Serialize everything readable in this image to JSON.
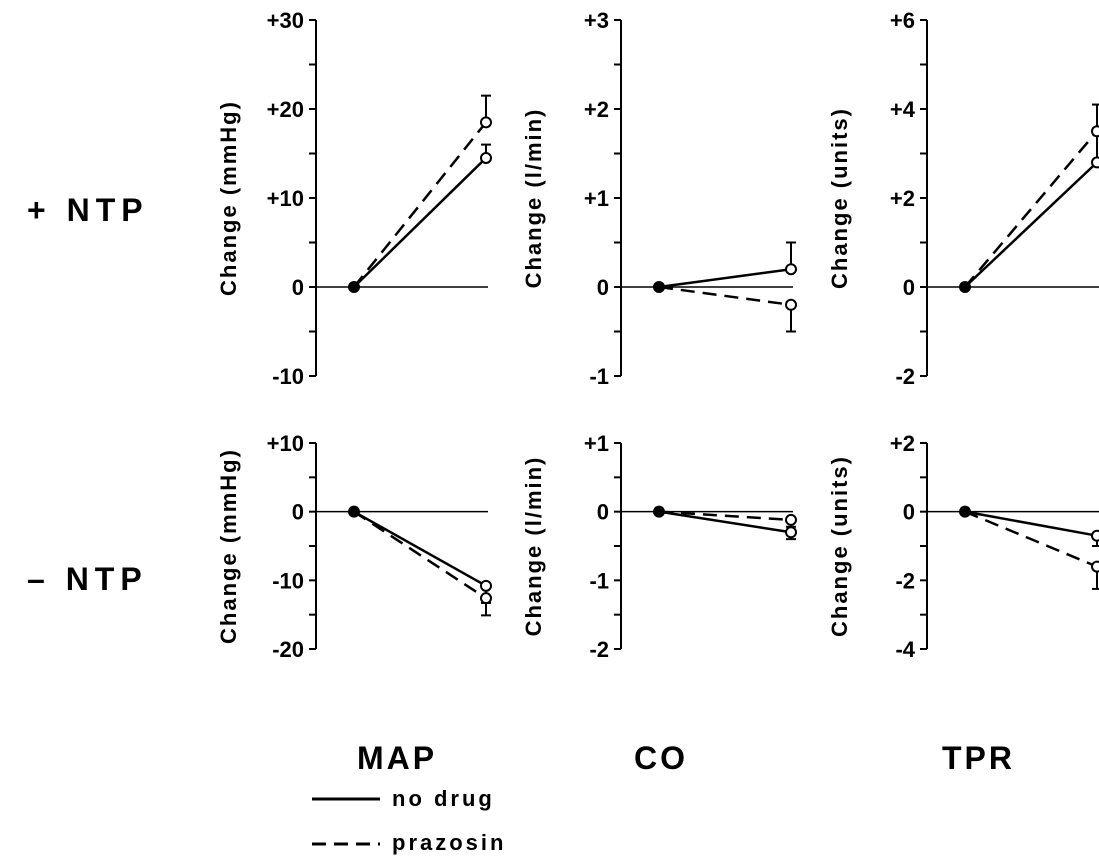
{
  "row_labels": [
    "+ NTP",
    "– NTP"
  ],
  "column_labels": [
    "MAP",
    "CO",
    "TPR"
  ],
  "legend": {
    "items": [
      {
        "label": "no drug",
        "style": "solid"
      },
      {
        "label": "prazosin",
        "style": "dashed"
      }
    ]
  },
  "colors": {
    "ink": "#000000",
    "background": "#ffffff"
  },
  "chart_data": [
    {
      "type": "line",
      "row": "+ NTP",
      "column": "MAP",
      "ylabel": "Change (mmHg)",
      "ylim": [
        -10,
        30
      ],
      "ticks": [
        -10,
        0,
        10,
        20,
        30
      ],
      "tick_labels": [
        "-10",
        "0",
        "+10",
        "+20",
        "+30"
      ],
      "minor_step": 5,
      "x": [
        0,
        1
      ],
      "series": [
        {
          "name": "no drug",
          "style": "solid",
          "values": [
            0,
            14.5
          ],
          "error": [
            0,
            1.5
          ]
        },
        {
          "name": "prazosin",
          "style": "dashed",
          "values": [
            0,
            18.5
          ],
          "error": [
            0,
            3
          ]
        }
      ]
    },
    {
      "type": "line",
      "row": "+ NTP",
      "column": "CO",
      "ylabel": "Change (l/min)",
      "ylim": [
        -1,
        3
      ],
      "ticks": [
        -1,
        0,
        1,
        2,
        3
      ],
      "tick_labels": [
        "-1",
        "0",
        "+1",
        "+2",
        "+3"
      ],
      "minor_step": 0.5,
      "x": [
        0,
        1
      ],
      "series": [
        {
          "name": "no drug",
          "style": "solid",
          "values": [
            0,
            0.2
          ],
          "error": [
            0,
            0.3
          ]
        },
        {
          "name": "prazosin",
          "style": "dashed",
          "values": [
            0,
            -0.2
          ],
          "error": [
            0,
            0.3
          ]
        }
      ]
    },
    {
      "type": "line",
      "row": "+ NTP",
      "column": "TPR",
      "ylabel": "Change (units)",
      "ylim": [
        -2,
        6
      ],
      "ticks": [
        -2,
        0,
        2,
        4,
        6
      ],
      "tick_labels": [
        "-2",
        "0",
        "+2",
        "+4",
        "+6"
      ],
      "minor_step": 1,
      "x": [
        0,
        1
      ],
      "series": [
        {
          "name": "no drug",
          "style": "solid",
          "values": [
            0,
            2.8
          ],
          "error": [
            0,
            0.7
          ]
        },
        {
          "name": "prazosin",
          "style": "dashed",
          "values": [
            0,
            3.5
          ],
          "error": [
            0,
            0.6
          ]
        }
      ]
    },
    {
      "type": "line",
      "row": "– NTP",
      "column": "MAP",
      "ylabel": "Change (mmHg)",
      "ylim": [
        -20,
        10
      ],
      "ticks": [
        -20,
        -10,
        0,
        10
      ],
      "tick_labels": [
        "-20",
        "-10",
        "0",
        "+10"
      ],
      "minor_step": 5,
      "x": [
        0,
        1
      ],
      "series": [
        {
          "name": "no drug",
          "style": "solid",
          "values": [
            0,
            -10.8
          ],
          "error": [
            0,
            2.5
          ]
        },
        {
          "name": "prazosin",
          "style": "dashed",
          "values": [
            0,
            -12.6
          ],
          "error": [
            0,
            2.5
          ]
        }
      ]
    },
    {
      "type": "line",
      "row": "– NTP",
      "column": "CO",
      "ylabel": "Change (l/min)",
      "ylim": [
        -2,
        1
      ],
      "ticks": [
        -2,
        -1,
        0,
        1
      ],
      "tick_labels": [
        "-2",
        "-1",
        "0",
        "+1"
      ],
      "minor_step": 0.5,
      "x": [
        0,
        1
      ],
      "series": [
        {
          "name": "no drug",
          "style": "solid",
          "values": [
            0,
            -0.3
          ],
          "error": [
            0,
            0.1
          ]
        },
        {
          "name": "prazosin",
          "style": "dashed",
          "values": [
            0,
            -0.12
          ],
          "error": [
            0,
            0.1
          ]
        }
      ]
    },
    {
      "type": "line",
      "row": "– NTP",
      "column": "TPR",
      "ylabel": "Change (units)",
      "ylim": [
        -4,
        2
      ],
      "ticks": [
        -4,
        -2,
        0,
        2
      ],
      "tick_labels": [
        "-4",
        "-2",
        "0",
        "+2"
      ],
      "minor_step": 1,
      "x": [
        0,
        1
      ],
      "series": [
        {
          "name": "no drug",
          "style": "solid",
          "values": [
            0,
            -0.7
          ],
          "error": [
            0,
            0.3
          ]
        },
        {
          "name": "prazosin",
          "style": "dashed",
          "values": [
            0,
            -1.6
          ],
          "error": [
            0,
            0.65
          ]
        }
      ]
    }
  ]
}
